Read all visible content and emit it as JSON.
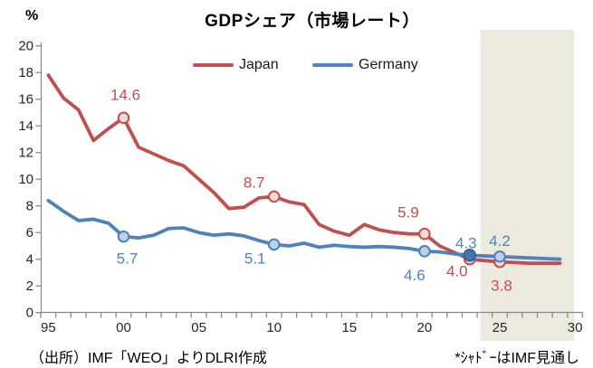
{
  "header": {
    "unit_label": "%",
    "title": "GDPシェア（市場レート）"
  },
  "legend": {
    "items": [
      {
        "label": "Japan",
        "color": "#C0504D"
      },
      {
        "label": "Germany",
        "color": "#4F81BD"
      }
    ]
  },
  "footer": {
    "source": "（出所）IMF「WEO」よりDLRI作成",
    "note": "*ｼｬﾄﾞｰはIMF見通し"
  },
  "chart_data": {
    "type": "line",
    "title": "GDPシェア（市場レート）",
    "ylabel": "%",
    "ylim": [
      0,
      20
    ],
    "ytick_step": 2,
    "grid": false,
    "legend_position": "top",
    "x_years": [
      1995,
      1996,
      1997,
      1998,
      1999,
      2000,
      2001,
      2002,
      2003,
      2004,
      2005,
      2006,
      2007,
      2008,
      2009,
      2010,
      2011,
      2012,
      2013,
      2014,
      2015,
      2016,
      2017,
      2018,
      2019,
      2020,
      2021,
      2022,
      2023,
      2024,
      2025,
      2026,
      2027,
      2028,
      2029
    ],
    "series": [
      {
        "name": "Japan",
        "color": "#C0504D",
        "marker_fill": "#F0D9D8",
        "values": [
          17.8,
          16.1,
          15.2,
          12.9,
          13.8,
          14.6,
          12.4,
          11.9,
          11.4,
          11.0,
          10.0,
          9.0,
          7.8,
          7.9,
          8.6,
          8.7,
          8.3,
          8.1,
          6.6,
          6.1,
          5.8,
          6.6,
          6.2,
          6.0,
          5.9,
          5.9,
          5.0,
          4.5,
          4.0,
          3.9,
          3.8,
          3.75,
          3.7,
          3.7,
          3.7
        ],
        "labeled_points": [
          {
            "year": 2000,
            "value": 14.6,
            "label": "14.6",
            "dx": 2,
            "dy": -20
          },
          {
            "year": 2010,
            "value": 8.7,
            "label": "8.7",
            "dx": -22,
            "dy": -10
          },
          {
            "year": 2020,
            "value": 5.9,
            "label": "5.9",
            "dx": -18,
            "dy": -18
          },
          {
            "year": 2023,
            "value": 4.0,
            "label": "4.0",
            "dx": -14,
            "dy": 19
          },
          {
            "year": 2025,
            "value": 3.8,
            "label": "3.8",
            "dx": 2,
            "dy": 32
          }
        ]
      },
      {
        "name": "Germany",
        "color": "#4F81BD",
        "marker_fill": "#BFD0E6",
        "values": [
          8.4,
          7.6,
          6.9,
          7.0,
          6.7,
          5.7,
          5.6,
          5.8,
          6.3,
          6.35,
          6.0,
          5.8,
          5.9,
          5.75,
          5.4,
          5.1,
          5.0,
          5.2,
          4.9,
          5.05,
          4.95,
          4.9,
          4.95,
          4.9,
          4.8,
          4.6,
          4.55,
          4.4,
          4.3,
          4.25,
          4.2,
          4.15,
          4.1,
          4.05,
          4.0
        ],
        "labeled_points": [
          {
            "year": 2000,
            "value": 5.7,
            "label": "5.7",
            "dx": 4,
            "dy": 30
          },
          {
            "year": 2010,
            "value": 5.1,
            "label": "5.1",
            "dx": -21,
            "dy": 21
          },
          {
            "year": 2020,
            "value": 4.6,
            "label": "4.6",
            "dx": -11,
            "dy": 32
          },
          {
            "year": 2023,
            "value": 4.3,
            "label": "4.3",
            "dx": -4,
            "dy": -8,
            "fill": "#4776AD",
            "stroke": "#3A6590"
          },
          {
            "year": 2025,
            "value": 4.2,
            "label": "4.2",
            "dx": 0,
            "dy": -12
          }
        ]
      }
    ],
    "yticks": [
      {
        "v": 0,
        "label": "0"
      },
      {
        "v": 2,
        "label": "2"
      },
      {
        "v": 4,
        "label": "4"
      },
      {
        "v": 6,
        "label": "6"
      },
      {
        "v": 8,
        "label": "8"
      },
      {
        "v": 10,
        "label": "10"
      },
      {
        "v": 12,
        "label": "12"
      },
      {
        "v": 14,
        "label": "14"
      },
      {
        "v": 16,
        "label": "16"
      },
      {
        "v": 18,
        "label": "18"
      },
      {
        "v": 20,
        "label": "20"
      }
    ],
    "xticks": [
      {
        "year": 1995,
        "label": "95"
      },
      {
        "year": 2000,
        "label": "00"
      },
      {
        "year": 2005,
        "label": "05"
      },
      {
        "year": 2010,
        "label": "10"
      },
      {
        "year": 2015,
        "label": "15"
      },
      {
        "year": 2020,
        "label": "20"
      },
      {
        "year": 2025,
        "label": "25"
      },
      {
        "year": 2030,
        "label": "30"
      }
    ],
    "shade": {
      "from_year": 2023.7,
      "to_year": 2029.95,
      "color": "#ECEADF",
      "meaning": "IMF forecast period"
    }
  }
}
